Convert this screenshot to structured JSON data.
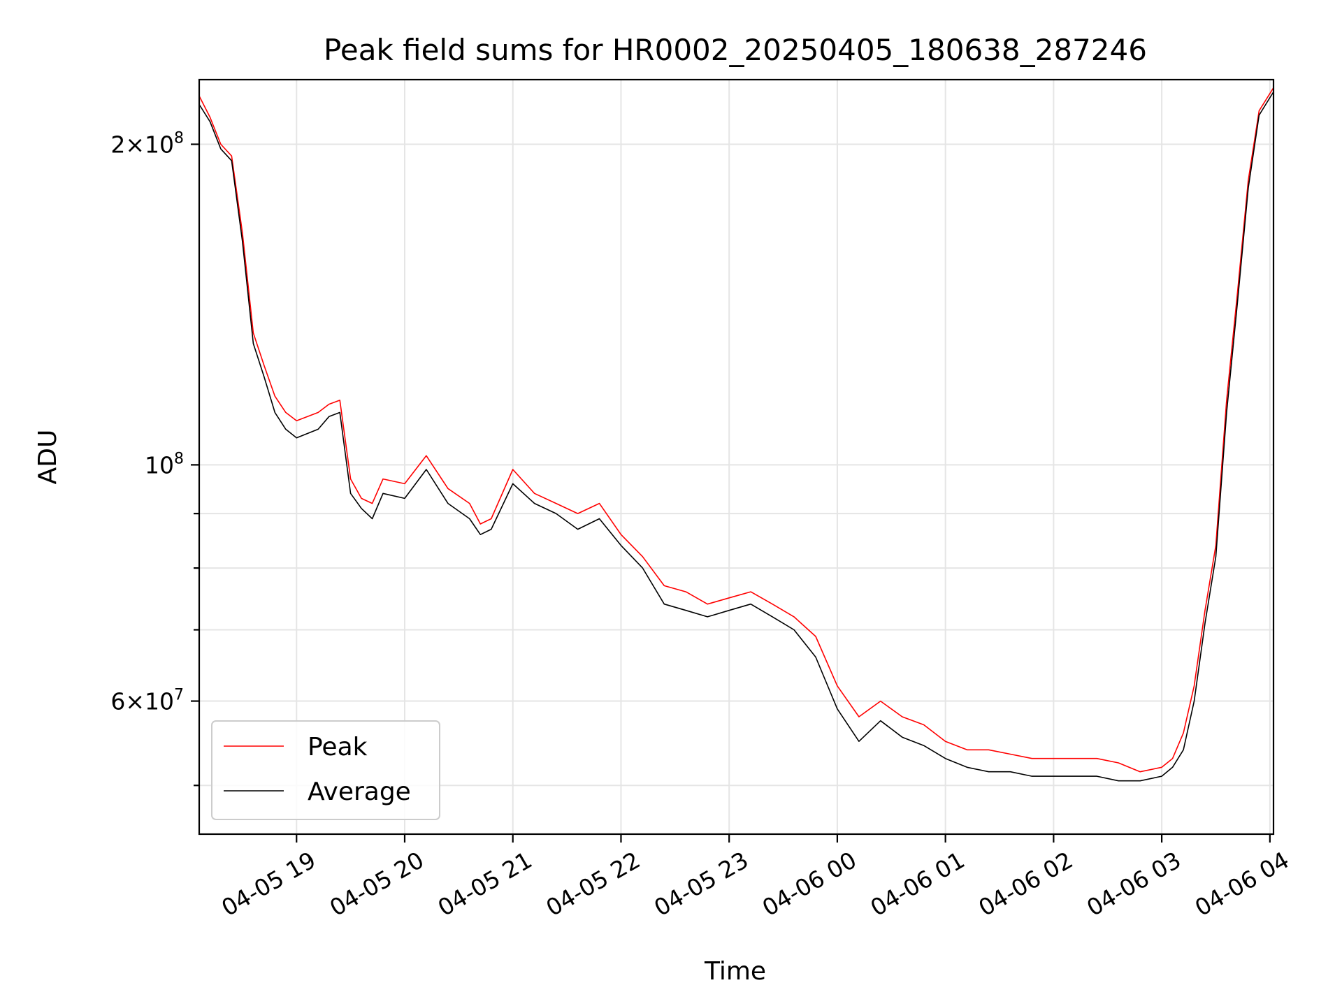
{
  "chart_data": {
    "type": "line",
    "title": "Peak field sums for HR0002_20250405_180638_287246",
    "xlabel": "Time",
    "ylabel": "ADU",
    "yscale": "log",
    "xlim": [
      "2025-04-05 18:06",
      "2025-04-06 04:02"
    ],
    "ylim": [
      45000000.0,
      230000000.0
    ],
    "grid": true,
    "legend_position": "lower-left",
    "x_ticks": [
      "04-05 19",
      "04-05 20",
      "04-05 21",
      "04-05 22",
      "04-05 23",
      "04-06 00",
      "04-06 01",
      "04-06 02",
      "04-06 03",
      "04-06 04"
    ],
    "y_ticks": [
      {
        "value": 60000000,
        "mantissa": "6",
        "exponent": "7"
      },
      {
        "value": 100000000,
        "mantissa": "",
        "exponent": "8"
      },
      {
        "value": 200000000,
        "mantissa": "2",
        "exponent": "8"
      }
    ],
    "series": [
      {
        "name": "Peak",
        "color": "#ff0000"
      },
      {
        "name": "Average",
        "color": "#000000"
      }
    ],
    "x": [
      "2025-04-05 18:06",
      "2025-04-05 18:12",
      "2025-04-05 18:18",
      "2025-04-05 18:24",
      "2025-04-05 18:30",
      "2025-04-05 18:36",
      "2025-04-05 18:42",
      "2025-04-05 18:48",
      "2025-04-05 18:54",
      "2025-04-05 19:00",
      "2025-04-05 19:12",
      "2025-04-05 19:18",
      "2025-04-05 19:24",
      "2025-04-05 19:30",
      "2025-04-05 19:36",
      "2025-04-05 19:42",
      "2025-04-05 19:48",
      "2025-04-05 20:00",
      "2025-04-05 20:12",
      "2025-04-05 20:24",
      "2025-04-05 20:36",
      "2025-04-05 20:42",
      "2025-04-05 20:48",
      "2025-04-05 21:00",
      "2025-04-05 21:12",
      "2025-04-05 21:24",
      "2025-04-05 21:36",
      "2025-04-05 21:48",
      "2025-04-05 22:00",
      "2025-04-05 22:12",
      "2025-04-05 22:24",
      "2025-04-05 22:36",
      "2025-04-05 22:48",
      "2025-04-05 23:00",
      "2025-04-05 23:12",
      "2025-04-05 23:24",
      "2025-04-05 23:36",
      "2025-04-05 23:48",
      "2025-04-06 00:00",
      "2025-04-06 00:12",
      "2025-04-06 00:24",
      "2025-04-06 00:36",
      "2025-04-06 00:48",
      "2025-04-06 01:00",
      "2025-04-06 01:12",
      "2025-04-06 01:24",
      "2025-04-06 01:36",
      "2025-04-06 01:48",
      "2025-04-06 02:00",
      "2025-04-06 02:12",
      "2025-04-06 02:24",
      "2025-04-06 02:36",
      "2025-04-06 02:48",
      "2025-04-06 03:00",
      "2025-04-06 03:06",
      "2025-04-06 03:12",
      "2025-04-06 03:18",
      "2025-04-06 03:24",
      "2025-04-06 03:30",
      "2025-04-06 03:36",
      "2025-04-06 03:42",
      "2025-04-06 03:48",
      "2025-04-06 03:54",
      "2025-04-06 04:02"
    ],
    "peak": [
      222000000,
      212000000,
      200000000,
      195000000,
      165000000,
      133000000,
      124000000,
      116000000,
      112000000,
      110000000,
      112000000,
      114000000,
      115000000,
      97000000,
      93000000,
      92000000,
      97000000,
      96000000,
      102000000,
      95000000,
      92000000,
      88000000,
      89000000,
      99000000,
      94000000,
      92000000,
      90000000,
      92000000,
      86000000,
      82000000,
      77000000,
      76000000,
      74000000,
      75000000,
      76000000,
      74000000,
      72000000,
      69000000,
      62000000,
      58000000,
      60000000,
      58000000,
      57000000,
      55000000,
      54000000,
      54000000,
      53500000,
      53000000,
      53000000,
      53000000,
      53000000,
      52500000,
      51500000,
      52000000,
      53000000,
      56000000,
      62000000,
      73000000,
      84000000,
      115000000,
      145000000,
      185000000,
      215000000,
      226000000
    ],
    "average": [
      218000000,
      210000000,
      198000000,
      193000000,
      162000000,
      130000000,
      121000000,
      112000000,
      108000000,
      106000000,
      108000000,
      111000000,
      112000000,
      94000000,
      91000000,
      89000000,
      94000000,
      93000000,
      99000000,
      92000000,
      89000000,
      86000000,
      87000000,
      96000000,
      92000000,
      90000000,
      87000000,
      89000000,
      84000000,
      80000000,
      74000000,
      73000000,
      72000000,
      73000000,
      74000000,
      72000000,
      70000000,
      66000000,
      59000000,
      55000000,
      57500000,
      55500000,
      54500000,
      53000000,
      52000000,
      51500000,
      51500000,
      51000000,
      51000000,
      51000000,
      51000000,
      50500000,
      50500000,
      51000000,
      52000000,
      54000000,
      60000000,
      71000000,
      82000000,
      112000000,
      142000000,
      182000000,
      213000000,
      224000000
    ]
  }
}
